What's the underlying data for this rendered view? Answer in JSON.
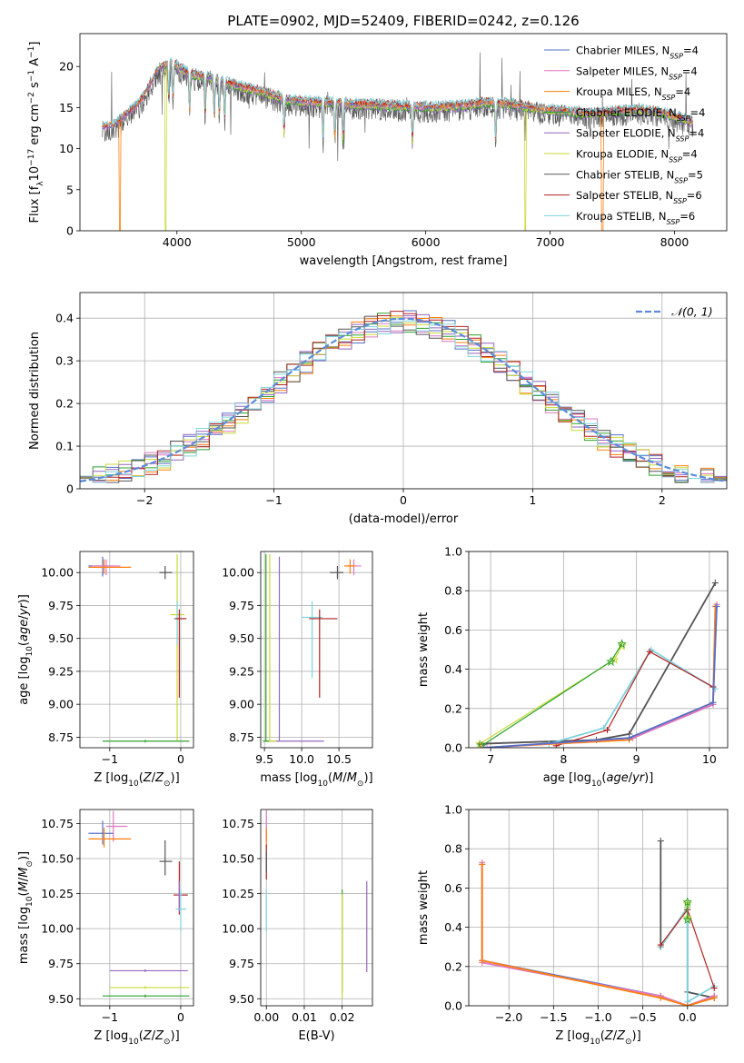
{
  "title": "PLATE=0902, MJD=52409, FIBERID=0242, z=0.126",
  "colors": {
    "chabrier_miles": "#5470c6",
    "salpeter_miles": "#e077c2",
    "kroupa_miles": "#ff7f0e",
    "chabrier_elodie": "#2ca02c",
    "salpeter_elodie": "#9467bd",
    "kroupa_elodie": "#c8d935",
    "chabrier_stelib": "#555555",
    "salpeter_stelib": "#b22222",
    "kroupa_stelib": "#7fd3dd",
    "normal_curve": "#5b8bd9"
  },
  "chart_data": [
    {
      "id": "spectrum",
      "type": "line",
      "xlabel": "wavelength [Angstrom, rest frame]",
      "ylabel_html": "Flux [f<tspan baseline-shift='sub' font-size='9'>λ</tspan>10<tspan baseline-shift='super' font-size='9'>−17</tspan> erg cm<tspan baseline-shift='super' font-size='9'>−2</tspan> s<tspan baseline-shift='super' font-size='9'>−1</tspan> A<tspan baseline-shift='super' font-size='9'>−1</tspan>]",
      "xlim": [
        3220,
        8420
      ],
      "ylim": [
        0,
        24
      ],
      "xticks": [
        4000,
        5000,
        6000,
        7000,
        8000
      ],
      "yticks": [
        0,
        5,
        10,
        15,
        20
      ],
      "grid": false,
      "legend_position": "top-right",
      "continuum_x": [
        3400,
        3500,
        3700,
        3850,
        3950,
        4100,
        4300,
        4500,
        4700,
        4900,
        5100,
        5300,
        5500,
        5700,
        5900,
        6100,
        6300,
        6500,
        6700,
        6900,
        7100,
        7300,
        7500,
        7700,
        7900,
        8150
      ],
      "continuum_y": [
        12.5,
        12.8,
        15.5,
        19.5,
        20.5,
        19.0,
        18.5,
        17.5,
        16.8,
        15.8,
        15.6,
        15.5,
        15.3,
        15.2,
        15.0,
        15.0,
        15.2,
        15.6,
        15.3,
        14.8,
        14.5,
        14.2,
        14.4,
        14.7,
        14.3,
        13.2
      ],
      "absorption_lines": [
        3934,
        3968,
        4102,
        4227,
        4300,
        4340,
        4383,
        4861,
        5175,
        5270,
        5335,
        5893,
        6563
      ],
      "dropouts": [
        {
          "series": "kroupa_miles",
          "x": 3540
        },
        {
          "series": "kroupa_elodie",
          "x": 3910
        },
        {
          "series": "kroupa_elodie",
          "x": 6800
        },
        {
          "series": "kroupa_miles",
          "x": 7420
        }
      ],
      "series": [
        {
          "key": "chabrier_miles",
          "name": "Chabrier MILES, N",
          "sub": "SSP",
          "suffix": "=4"
        },
        {
          "key": "salpeter_miles",
          "name": "Salpeter MILES, N",
          "sub": "SSP",
          "suffix": "=4"
        },
        {
          "key": "kroupa_miles",
          "name": "Kroupa MILES, N",
          "sub": "SSP",
          "suffix": "=4"
        },
        {
          "key": "chabrier_elodie",
          "name": "Chabrier ELODIE, N",
          "sub": "SSP",
          "suffix": "=4"
        },
        {
          "key": "salpeter_elodie",
          "name": "Salpeter ELODIE, N",
          "sub": "SSP",
          "suffix": "=4"
        },
        {
          "key": "kroupa_elodie",
          "name": "Kroupa ELODIE, N",
          "sub": "SSP",
          "suffix": "=4"
        },
        {
          "key": "chabrier_stelib",
          "name": "Chabrier STELIB, N",
          "sub": "SSP",
          "suffix": "=5"
        },
        {
          "key": "salpeter_stelib",
          "name": "Salpeter STELIB, N",
          "sub": "SSP",
          "suffix": "=6"
        },
        {
          "key": "kroupa_stelib",
          "name": "Kroupa STELIB, N",
          "sub": "SSP",
          "suffix": "=6"
        }
      ]
    },
    {
      "id": "residuals",
      "type": "line",
      "xlabel": "(data-model)/error",
      "ylabel": "Normed distribution",
      "xlim": [
        -2.5,
        2.5
      ],
      "ylim": [
        0,
        0.46
      ],
      "xticks": [
        -2,
        -1,
        0,
        1,
        2
      ],
      "yticks": [
        0.0,
        0.1,
        0.2,
        0.3,
        0.4
      ],
      "grid": true,
      "legend_position": "top-right",
      "curve_legend": "𝒩(0, 1)",
      "bin_width": 0.1
    },
    {
      "id": "age_vs_Z",
      "type": "scatter",
      "xlabel_html": "Z [log<tspan baseline-shift='sub' font-size='9'>10</tspan>(<tspan font-style='italic'>Z</tspan>/<tspan font-style='italic'>Z</tspan><tspan baseline-shift='sub' font-size='9'>⊙</tspan>)]",
      "ylabel_html": "age  [log<tspan baseline-shift='sub' font-size='9'>10</tspan>(<tspan font-style='italic'>age</tspan>/<tspan font-style='italic'>yr</tspan>)]",
      "xlim": [
        -1.42,
        0.18
      ],
      "ylim": [
        8.67,
        10.16
      ],
      "xticks": [
        -1,
        0
      ],
      "yticks": [
        8.75,
        9.0,
        9.25,
        9.5,
        9.75,
        10.0
      ],
      "ytick_labels": [
        "8.75",
        "9.00",
        "9.25",
        "9.50",
        "9.75",
        "10.00"
      ],
      "grid": true,
      "errorbars": [
        {
          "c": "chabrier_miles",
          "x": -1.1,
          "y": 10.05,
          "xl": -1.3,
          "xh": -0.95,
          "yl": 9.97,
          "yh": 10.12
        },
        {
          "c": "salpeter_miles",
          "x": -1.05,
          "y": 10.05,
          "xl": -1.25,
          "xh": -0.85,
          "yl": 9.98,
          "yh": 10.1
        },
        {
          "c": "kroupa_miles",
          "x": -1.08,
          "y": 10.04,
          "xl": -1.3,
          "xh": -0.7,
          "yl": 9.99,
          "yh": 10.1
        },
        {
          "c": "chabrier_stelib",
          "x": -0.22,
          "y": 10.0,
          "xl": -0.3,
          "xh": -0.12,
          "yl": 9.95,
          "yh": 10.05
        },
        {
          "c": "kroupa_elodie",
          "x": -0.05,
          "y": 9.68,
          "xl": -0.15,
          "xh": 0.05,
          "yl": 8.72,
          "yh": 10.14
        },
        {
          "c": "kroupa_stelib",
          "x": -0.05,
          "y": 9.65,
          "xl": -0.1,
          "xh": 0.02,
          "yl": 9.45,
          "yh": 9.78
        },
        {
          "c": "salpeter_stelib",
          "x": -0.02,
          "y": 9.65,
          "xl": -0.08,
          "xh": 0.08,
          "yl": 9.05,
          "yh": 9.72
        },
        {
          "c": "chabrier_elodie",
          "x": -0.5,
          "y": 8.72,
          "xl": -1.1,
          "xh": 0.12,
          "yl": 8.71,
          "yh": 8.73
        }
      ]
    },
    {
      "id": "age_vs_mass",
      "type": "scatter",
      "xlabel_html": "mass [log<tspan baseline-shift='sub' font-size='9'>10</tspan>(<tspan font-style='italic'>M</tspan>/<tspan font-style='italic'>M</tspan><tspan baseline-shift='sub' font-size='9'>⊙</tspan>)]",
      "ylabel_html": "",
      "xlim": [
        9.45,
        10.95
      ],
      "ylim": [
        8.67,
        10.16
      ],
      "xticks": [
        9.5,
        10.0,
        10.5
      ],
      "xtick_labels": [
        "9.5",
        "10.0",
        "10.5"
      ],
      "yticks": [
        8.75,
        9.0,
        9.25,
        9.5,
        9.75,
        10.0
      ],
      "ytick_labels": [
        "8.75",
        "9.00",
        "9.25",
        "9.50",
        "9.75",
        "10.00"
      ],
      "grid": true,
      "errorbars": [
        {
          "c": "chabrier_stelib",
          "x": 10.48,
          "y": 10.0,
          "xl": 10.38,
          "xh": 10.56,
          "yl": 9.95,
          "yh": 10.05
        },
        {
          "c": "salpeter_miles",
          "x": 10.7,
          "y": 10.05,
          "xl": 10.6,
          "xh": 10.8,
          "yl": 9.98,
          "yh": 10.1
        },
        {
          "c": "kroupa_miles",
          "x": 10.65,
          "y": 10.05,
          "xl": 10.57,
          "xh": 10.72,
          "yl": 9.99,
          "yh": 10.1
        },
        {
          "c": "kroupa_stelib",
          "x": 10.14,
          "y": 9.66,
          "xl": 10.0,
          "xh": 10.28,
          "yl": 9.2,
          "yh": 9.78
        },
        {
          "c": "salpeter_stelib",
          "x": 10.24,
          "y": 9.65,
          "xl": 10.1,
          "xh": 10.48,
          "yl": 9.05,
          "yh": 9.72
        },
        {
          "c": "salpeter_elodie",
          "x": 9.7,
          "y": 8.72,
          "xl": 9.48,
          "xh": 10.3,
          "yl": 8.72,
          "yh": 10.12
        },
        {
          "c": "kroupa_elodie",
          "x": 9.57,
          "y": 8.72,
          "xl": 9.48,
          "xh": 9.66,
          "yl": 8.72,
          "yh": 10.14
        },
        {
          "c": "chabrier_elodie",
          "x": 9.52,
          "y": 8.72,
          "xl": 9.48,
          "xh": 9.56,
          "yl": 8.72,
          "yh": 10.14
        }
      ]
    },
    {
      "id": "weight_vs_age",
      "type": "line",
      "xlabel_html": "age  [log<tspan baseline-shift='sub' font-size='9'>10</tspan>(<tspan font-style='italic'>age</tspan>/<tspan font-style='italic'>yr</tspan>)]",
      "ylabel": "mass weight",
      "xlim": [
        6.7,
        10.25
      ],
      "ylim": [
        0,
        1.0
      ],
      "xticks": [
        7,
        8,
        9,
        10
      ],
      "yticks": [
        0.0,
        0.2,
        0.4,
        0.6,
        0.8,
        1.0
      ],
      "ytick_labels": [
        "0.0",
        "0.2",
        "0.4",
        "0.6",
        "0.8",
        "1.0"
      ],
      "grid": true,
      "series": [
        {
          "c": "chabrier_stelib",
          "x": [
            6.85,
            8.45,
            8.9,
            10.08
          ],
          "y": [
            0.02,
            0.04,
            0.07,
            0.84
          ]
        },
        {
          "c": "kroupa_stelib",
          "x": [
            7.8,
            8.55,
            9.2,
            10.08
          ],
          "y": [
            0.02,
            0.1,
            0.5,
            0.3
          ]
        },
        {
          "c": "salpeter_stelib",
          "x": [
            7.9,
            8.6,
            9.18,
            10.05
          ],
          "y": [
            0.01,
            0.09,
            0.49,
            0.31
          ]
        },
        {
          "c": "kroupa_elodie",
          "x": [
            6.85,
            8.7,
            8.8
          ],
          "y": [
            0.02,
            0.45,
            0.52
          ]
        },
        {
          "c": "chabrier_elodie",
          "x": [
            6.88,
            8.65,
            8.8
          ],
          "y": [
            0.01,
            0.44,
            0.53
          ]
        },
        {
          "c": "kroupa_miles",
          "x": [
            6.88,
            8.9,
            10.05,
            10.08
          ],
          "y": [
            0.0,
            0.04,
            0.23,
            0.72
          ]
        },
        {
          "c": "salpeter_miles",
          "x": [
            6.95,
            8.95,
            10.05,
            10.1
          ],
          "y": [
            0.0,
            0.05,
            0.22,
            0.73
          ]
        },
        {
          "c": "chabrier_miles",
          "x": [
            6.9,
            8.9,
            10.05,
            10.1
          ],
          "y": [
            0.0,
            0.05,
            0.23,
            0.72
          ]
        }
      ]
    },
    {
      "id": "mass_vs_Z",
      "type": "scatter",
      "xlabel_html": "Z [log<tspan baseline-shift='sub' font-size='9'>10</tspan>(<tspan font-style='italic'>Z</tspan>/<tspan font-style='italic'>Z</tspan><tspan baseline-shift='sub' font-size='9'>⊙</tspan>)]",
      "ylabel_html": "mass [log<tspan baseline-shift='sub' font-size='9'>10</tspan>(<tspan font-style='italic'>M</tspan>/<tspan font-style='italic'>M</tspan><tspan baseline-shift='sub' font-size='9'>⊙</tspan>)]",
      "xlim": [
        -1.42,
        0.18
      ],
      "ylim": [
        9.45,
        10.85
      ],
      "xticks": [
        -1,
        0
      ],
      "yticks": [
        9.5,
        9.75,
        10.0,
        10.25,
        10.5,
        10.75
      ],
      "ytick_labels": [
        "9.50",
        "9.75",
        "10.00",
        "10.25",
        "10.50",
        "10.75"
      ],
      "grid": true,
      "errorbars": [
        {
          "c": "salpeter_miles",
          "x": -0.95,
          "y": 10.73,
          "xl": -1.05,
          "xh": -0.75,
          "yl": 10.62,
          "yh": 10.84
        },
        {
          "c": "chabrier_miles",
          "x": -1.1,
          "y": 10.68,
          "xl": -1.3,
          "xh": -0.95,
          "yl": 10.6,
          "yh": 10.77
        },
        {
          "c": "kroupa_miles",
          "x": -1.08,
          "y": 10.64,
          "xl": -1.3,
          "xh": -0.7,
          "yl": 10.58,
          "yh": 10.72
        },
        {
          "c": "chabrier_stelib",
          "x": -0.22,
          "y": 10.48,
          "xl": -0.3,
          "xh": -0.12,
          "yl": 10.38,
          "yh": 10.63
        },
        {
          "c": "salpeter_stelib",
          "x": -0.02,
          "y": 10.24,
          "xl": -0.1,
          "xh": 0.1,
          "yl": 10.1,
          "yh": 10.48
        },
        {
          "c": "salpeter_elodie",
          "x": -0.02,
          "y": 10.24,
          "xl": -0.05,
          "xh": 0.02,
          "yl": 10.12,
          "yh": 10.34
        },
        {
          "c": "kroupa_stelib",
          "x": 0.0,
          "y": 10.14,
          "xl": -0.07,
          "xh": 0.08,
          "yl": 9.98,
          "yh": 10.28
        },
        {
          "c": "salpeter_elodie",
          "x": -0.5,
          "y": 9.7,
          "xl": -1.0,
          "xh": 0.1,
          "yl": 9.69,
          "yh": 9.71
        },
        {
          "c": "kroupa_elodie",
          "x": -0.5,
          "y": 9.58,
          "xl": -1.0,
          "xh": 0.12,
          "yl": 9.57,
          "yh": 9.59
        },
        {
          "c": "chabrier_elodie",
          "x": -0.5,
          "y": 9.52,
          "xl": -1.1,
          "xh": 0.12,
          "yl": 9.51,
          "yh": 9.53
        }
      ]
    },
    {
      "id": "mass_vs_ebv",
      "type": "scatter",
      "xlabel_html": "E(B-V)",
      "ylabel_html": "",
      "xlim": [
        -0.0015,
        0.028
      ],
      "ylim": [
        9.45,
        10.85
      ],
      "xticks": [
        0.0,
        0.01,
        0.02
      ],
      "xtick_labels": [
        "0.00",
        "0.01",
        "0.02"
      ],
      "yticks": [
        9.5,
        9.75,
        10.0,
        10.25,
        10.5,
        10.75
      ],
      "ytick_labels": [
        "9.50",
        "9.75",
        "10.00",
        "10.25",
        "10.50",
        "10.75"
      ],
      "grid": true,
      "errorbars": [
        {
          "c": "salpeter_miles",
          "x": 0.0,
          "y": 10.73,
          "xl": 0.0,
          "xh": 0.0,
          "yl": 10.62,
          "yh": 10.84
        },
        {
          "c": "kroupa_miles",
          "x": 0.0,
          "y": 10.64,
          "xl": 0.0,
          "xh": 0.0,
          "yl": 10.58,
          "yh": 10.72
        },
        {
          "c": "salpeter_stelib",
          "x": 0.0,
          "y": 10.48,
          "xl": 0.0,
          "xh": 0.0,
          "yl": 10.35,
          "yh": 10.6
        },
        {
          "c": "chabrier_stelib",
          "x": 0.0,
          "y": 10.48,
          "xl": 0.0,
          "xh": 0.0,
          "yl": 10.4,
          "yh": 10.55
        },
        {
          "c": "kroupa_stelib",
          "x": 0.0,
          "y": 10.14,
          "xl": 0.0,
          "xh": 0.0,
          "yl": 9.98,
          "yh": 10.28
        },
        {
          "c": "chabrier_elodie",
          "x": 0.02,
          "y": 9.9,
          "xl": 0.02,
          "xh": 0.02,
          "yl": 9.55,
          "yh": 10.28
        },
        {
          "c": "kroupa_elodie",
          "x": 0.02,
          "y": 9.9,
          "xl": 0.02,
          "xh": 0.02,
          "yl": 9.5,
          "yh": 10.25
        },
        {
          "c": "salpeter_elodie",
          "x": 0.0265,
          "y": 10.0,
          "xl": 0.0265,
          "xh": 0.0265,
          "yl": 9.69,
          "yh": 10.34
        }
      ]
    },
    {
      "id": "weight_vs_Z",
      "type": "line",
      "xlabel_html": "Z [log<tspan baseline-shift='sub' font-size='9'>10</tspan>(<tspan font-style='italic'>Z</tspan>/<tspan font-style='italic'>Z</tspan><tspan baseline-shift='sub' font-size='9'>⊙</tspan>)]",
      "ylabel": "mass weight",
      "xlim": [
        -2.45,
        0.45
      ],
      "ylim": [
        0,
        1.0
      ],
      "xticks": [
        -2.0,
        -1.5,
        -1.0,
        -0.5,
        0.0
      ],
      "xtick_labels": [
        "−2.0",
        "−1.5",
        "−1.0",
        "−0.5",
        "0.0"
      ],
      "yticks": [
        0.0,
        0.2,
        0.4,
        0.6,
        0.8,
        1.0
      ],
      "ytick_labels": [
        "0.0",
        "0.2",
        "0.4",
        "0.6",
        "0.8",
        "1.0"
      ],
      "grid": true,
      "series": [
        {
          "c": "chabrier_stelib",
          "x": [
            -0.3,
            -0.3,
            0.0,
            0.0,
            0.3
          ],
          "y": [
            0.84,
            0.3,
            0.5,
            0.07,
            0.04
          ]
        },
        {
          "c": "kroupa_stelib",
          "x": [
            -0.3,
            0.0,
            0.0,
            0.3
          ],
          "y": [
            0.3,
            0.5,
            0.02,
            0.1
          ]
        },
        {
          "c": "salpeter_stelib",
          "x": [
            -0.3,
            0.0,
            0.3
          ],
          "y": [
            0.31,
            0.49,
            0.09
          ]
        },
        {
          "c": "kroupa_elodie",
          "x": [
            0.0,
            0.0
          ],
          "y": [
            0.52,
            0.45
          ]
        },
        {
          "c": "chabrier_elodie",
          "x": [
            0.0,
            0.0
          ],
          "y": [
            0.53,
            0.44
          ]
        },
        {
          "c": "chabrier_miles",
          "x": [
            -2.3,
            -2.3,
            -0.3,
            0.0,
            0.3
          ],
          "y": [
            0.72,
            0.23,
            0.05,
            0.0,
            0.05
          ]
        },
        {
          "c": "salpeter_miles",
          "x": [
            -2.3,
            -2.3,
            -0.3,
            0.0,
            0.3
          ],
          "y": [
            0.73,
            0.22,
            0.05,
            0.0,
            0.05
          ]
        },
        {
          "c": "kroupa_miles",
          "x": [
            -2.3,
            -2.3,
            -0.3,
            0.0,
            0.3
          ],
          "y": [
            0.72,
            0.23,
            0.04,
            0.0,
            0.04
          ]
        }
      ]
    }
  ]
}
